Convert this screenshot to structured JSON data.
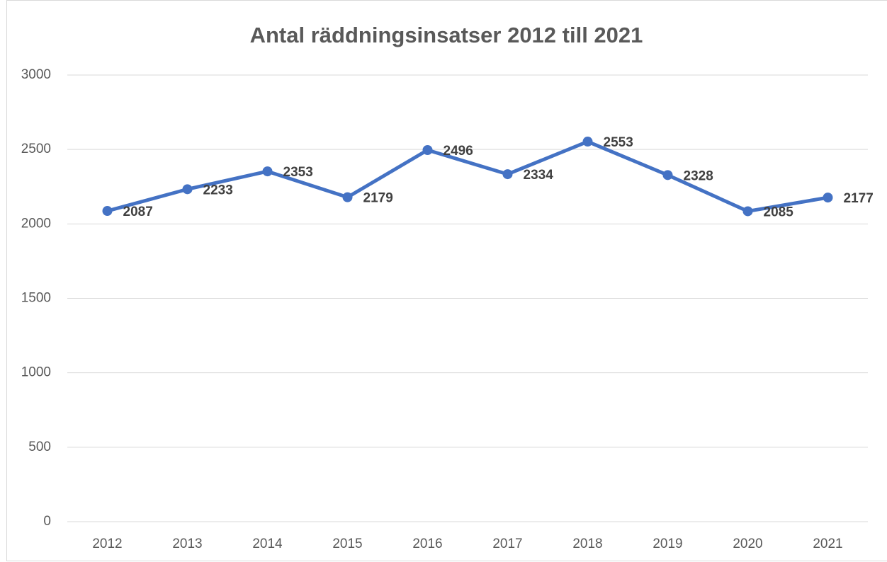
{
  "chart_data": {
    "type": "line",
    "title": "Antal räddningsinsatser 2012 till 2021",
    "categories": [
      "2012",
      "2013",
      "2014",
      "2015",
      "2016",
      "2017",
      "2018",
      "2019",
      "2020",
      "2021"
    ],
    "values": [
      2087,
      2233,
      2353,
      2179,
      2496,
      2334,
      2553,
      2328,
      2085,
      2177
    ],
    "color": "#4472c4",
    "ylim": [
      0,
      3000
    ],
    "yticks": [
      0,
      500,
      1000,
      1500,
      2000,
      2500,
      3000
    ],
    "grid": true,
    "data_labels": true
  }
}
